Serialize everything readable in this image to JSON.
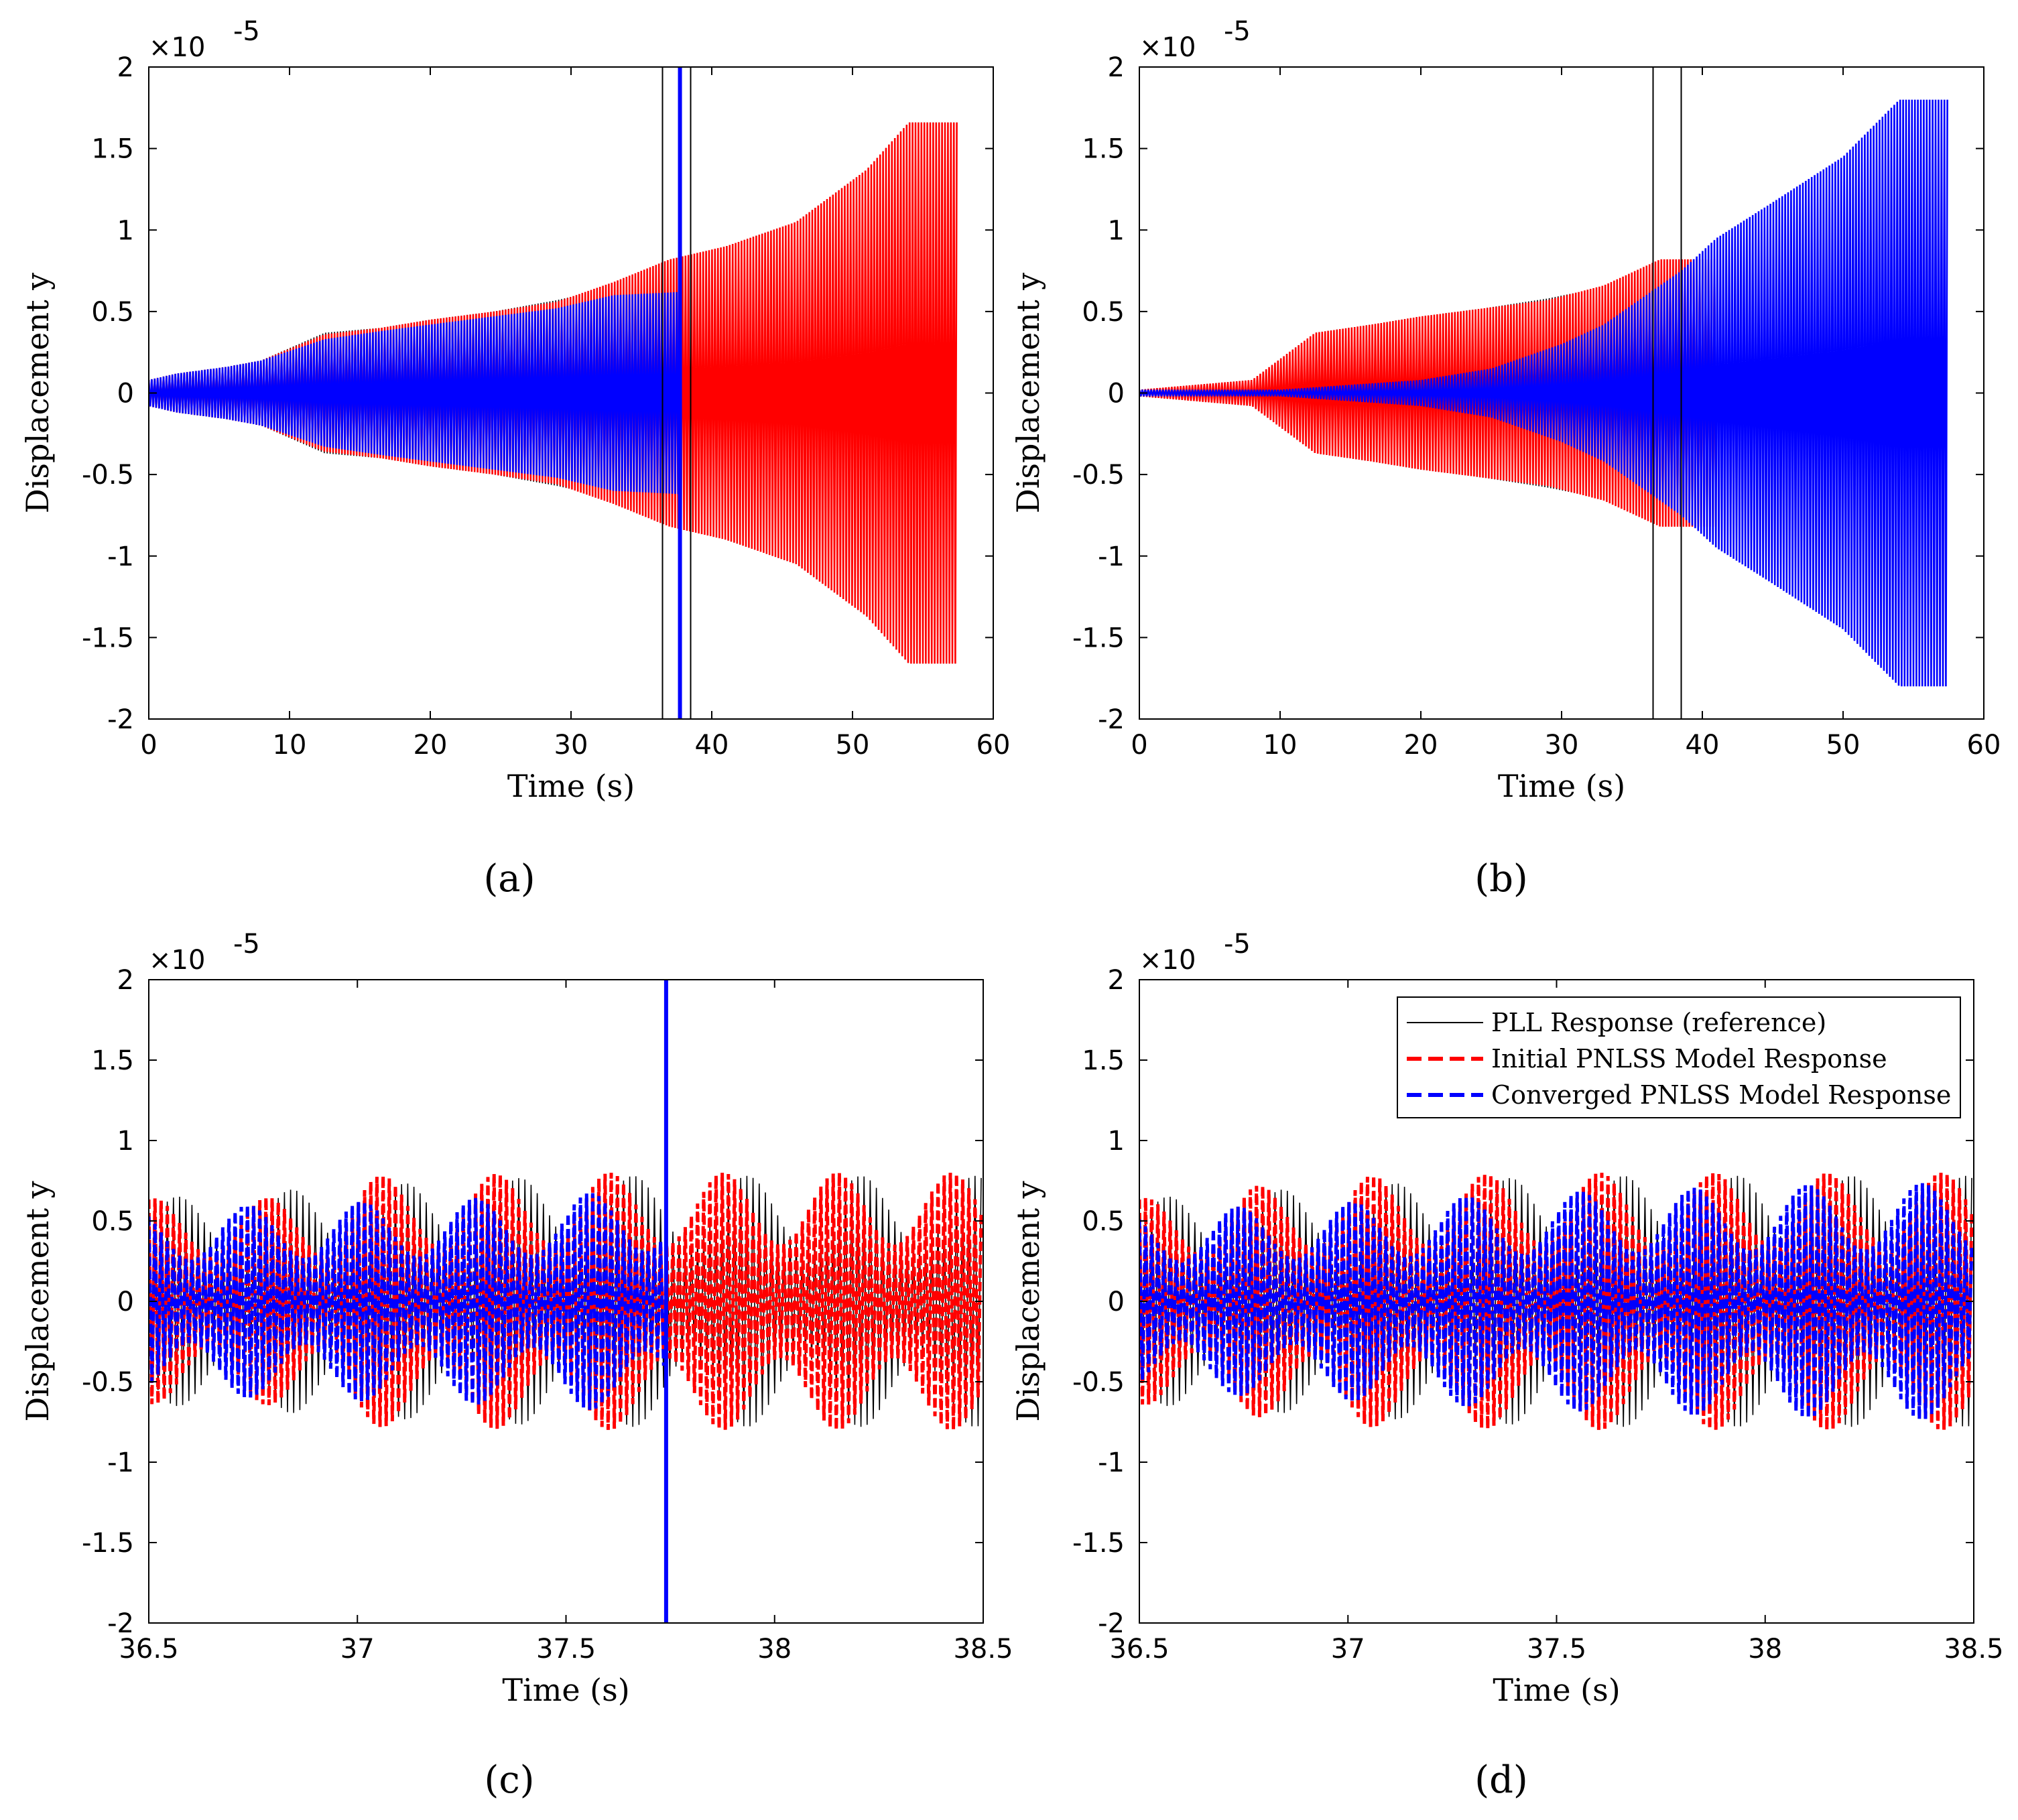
{
  "figure": {
    "colors": {
      "reference": "#000000",
      "initial": "#ff0000",
      "converged": "#0000ff"
    }
  },
  "legend": {
    "entries": [
      {
        "label": "PLL Response (reference)",
        "style": "solid",
        "color": "#000000"
      },
      {
        "label": "Initial PNLSS Model Response",
        "style": "dashed",
        "color": "#ff0000"
      },
      {
        "label": "Converged PNLSS Model Response",
        "style": "dashed",
        "color": "#0000ff"
      }
    ]
  },
  "chart_data": [
    {
      "id": "a",
      "caption": "(a)",
      "type": "line",
      "xlabel": "Time (s)",
      "ylabel": "Displacement y",
      "yscale_label": "×10",
      "yscale_exp": "-5",
      "xlim": [
        0,
        60
      ],
      "ylim": [
        -2,
        2
      ],
      "xticks": [
        "0",
        "10",
        "20",
        "30",
        "40",
        "50",
        "60"
      ],
      "yticks": [
        "-2",
        "-1.5",
        "-1",
        "-0.5",
        "0",
        "0.5",
        "1",
        "1.5",
        "2"
      ],
      "window_lines_x": [
        36.5,
        38.5
      ],
      "spike": {
        "series": "converged",
        "x": 37.74,
        "y": [
          -2,
          2
        ]
      },
      "series": [
        {
          "name": "PLL Response (reference)",
          "key": "reference",
          "envelope": {
            "t": [
              0,
              2,
              5.5,
              8,
              12.5,
              16.5,
              20,
              24.5,
              29,
              33,
              37,
              41,
              46,
              51,
              54,
              57.5
            ],
            "amp": [
              0.08,
              0.12,
              0.16,
              0.2,
              0.37,
              0.4,
              0.45,
              0.5,
              0.57,
              0.65,
              0.8,
              0.9,
              1.05,
              1.37,
              1.66,
              1.66
            ]
          }
        },
        {
          "name": "Initial PNLSS Model Response",
          "key": "initial",
          "envelope": {
            "t": [
              0,
              2,
              5.5,
              8,
              12.5,
              16.5,
              20,
              24.5,
              29,
              33,
              37,
              41,
              46,
              51,
              54,
              57.5
            ],
            "amp": [
              0.08,
              0.12,
              0.16,
              0.2,
              0.36,
              0.4,
              0.45,
              0.5,
              0.56,
              0.68,
              0.82,
              0.9,
              1.05,
              1.37,
              1.66,
              1.66
            ]
          }
        },
        {
          "name": "Converged PNLSS Model Response",
          "key": "converged",
          "envelope": {
            "t": [
              0,
              2,
              5.5,
              8,
              12.5,
              16.5,
              20,
              24.5,
              29,
              33,
              37.74
            ],
            "amp": [
              0.08,
              0.12,
              0.16,
              0.2,
              0.33,
              0.38,
              0.42,
              0.47,
              0.52,
              0.6,
              0.62
            ]
          }
        }
      ]
    },
    {
      "id": "b",
      "caption": "(b)",
      "type": "line",
      "xlabel": "Time (s)",
      "ylabel": "Displacement y",
      "yscale_label": "×10",
      "yscale_exp": "-5",
      "xlim": [
        0,
        60
      ],
      "ylim": [
        -2,
        2
      ],
      "xticks": [
        "0",
        "10",
        "20",
        "30",
        "40",
        "50",
        "60"
      ],
      "yticks": [
        "-2",
        "-1.5",
        "-1",
        "-0.5",
        "0",
        "0.5",
        "1",
        "1.5",
        "2"
      ],
      "window_lines_x": [
        36.5,
        38.5
      ],
      "series": [
        {
          "name": "PLL Response (reference)",
          "key": "reference",
          "envelope": {
            "t": [
              0,
              4,
              8,
              12.5,
              16.5,
              20,
              24.5,
              29,
              33,
              37,
              38.5
            ],
            "amp": [
              0.02,
              0.05,
              0.08,
              0.37,
              0.42,
              0.47,
              0.52,
              0.58,
              0.65,
              0.8,
              0.8
            ]
          }
        },
        {
          "name": "Initial PNLSS Model Response",
          "key": "initial",
          "envelope": {
            "t": [
              0,
              4,
              8,
              12.5,
              16.5,
              20,
              24.5,
              29,
              33,
              37,
              41
            ],
            "amp": [
              0.02,
              0.05,
              0.08,
              0.37,
              0.42,
              0.47,
              0.52,
              0.57,
              0.66,
              0.82,
              0.82
            ]
          }
        },
        {
          "name": "Converged PNLSS Model Response",
          "key": "converged",
          "envelope": {
            "t": [
              0,
              10,
              15,
              20,
              25,
              30,
              33,
              36,
              38.5,
              41,
              45,
              50,
              54,
              57.5
            ],
            "amp": [
              0.02,
              0.02,
              0.05,
              0.08,
              0.15,
              0.3,
              0.42,
              0.6,
              0.75,
              0.95,
              1.17,
              1.45,
              1.8,
              1.8
            ]
          }
        }
      ]
    },
    {
      "id": "c",
      "caption": "(c)",
      "type": "line",
      "xlabel": "Time (s)",
      "ylabel": "Displacement y",
      "yscale_label": "×10",
      "yscale_exp": "-5",
      "xlim": [
        36.5,
        38.5
      ],
      "ylim": [
        -2,
        2
      ],
      "xticks": [
        "36.5",
        "37",
        "37.5",
        "38",
        "38.5"
      ],
      "yticks": [
        "-2",
        "-1.5",
        "-1",
        "-0.5",
        "0",
        "0.5",
        "1",
        "1.5",
        "2"
      ],
      "spike": {
        "series": "converged",
        "x": 37.74,
        "y": [
          -2,
          2
        ]
      },
      "series": [
        {
          "name": "PLL Response (reference)",
          "key": "reference",
          "envelope": {
            "t": [
              36.5,
              37.0,
              37.5,
              38.0,
              38.5
            ],
            "amp": [
              0.64,
              0.72,
              0.78,
              0.78,
              0.78
            ]
          }
        },
        {
          "name": "Initial PNLSS Model Response",
          "key": "initial",
          "envelope": {
            "t": [
              36.5,
              36.95,
              37.0,
              37.5,
              38.0,
              38.5
            ],
            "amp": [
              0.64,
              0.65,
              0.78,
              0.8,
              0.8,
              0.8
            ]
          }
        },
        {
          "name": "Converged PNLSS Model Response",
          "key": "converged",
          "envelope": {
            "t": [
              36.5,
              37.0,
              37.5,
              37.74
            ],
            "amp": [
              0.58,
              0.62,
              0.66,
              0.72
            ]
          }
        }
      ]
    },
    {
      "id": "d",
      "caption": "(d)",
      "type": "line",
      "xlabel": "Time (s)",
      "ylabel": "Displacement y",
      "yscale_label": "×10",
      "yscale_exp": "-5",
      "xlim": [
        36.5,
        38.5
      ],
      "ylim": [
        -2,
        2
      ],
      "xticks": [
        "36.5",
        "37",
        "37.5",
        "38",
        "38.5"
      ],
      "yticks": [
        "-2",
        "-1.5",
        "-1",
        "-0.5",
        "0",
        "0.5",
        "1",
        "1.5",
        "2"
      ],
      "legend": true,
      "series": [
        {
          "name": "PLL Response (reference)",
          "key": "reference",
          "envelope": {
            "t": [
              36.5,
              37.0,
              37.5,
              38.0,
              38.5
            ],
            "amp": [
              0.64,
              0.72,
              0.78,
              0.78,
              0.78
            ]
          }
        },
        {
          "name": "Initial PNLSS Model Response",
          "key": "initial",
          "envelope": {
            "t": [
              36.5,
              37.0,
              37.5,
              38.0,
              38.5
            ],
            "amp": [
              0.64,
              0.78,
              0.8,
              0.8,
              0.8
            ]
          }
        },
        {
          "name": "Converged PNLSS Model Response",
          "key": "converged",
          "envelope": {
            "t": [
              36.5,
              37.0,
              37.5,
              38.0,
              38.5
            ],
            "amp": [
              0.56,
              0.62,
              0.68,
              0.72,
              0.74
            ]
          }
        }
      ]
    }
  ]
}
